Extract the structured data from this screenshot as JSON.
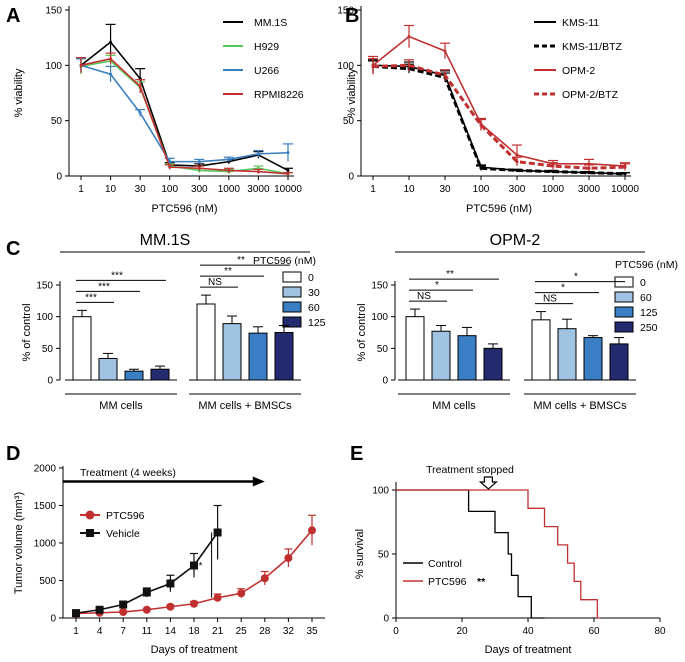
{
  "panels": [
    "A",
    "B",
    "C",
    "D",
    "E"
  ],
  "chart_data": [
    {
      "id": "A",
      "type": "line",
      "xlabel": "PTC596 (nM)",
      "ylabel": "% viability",
      "categories": [
        "1",
        "10",
        "30",
        "100",
        "300",
        "1000",
        "3000",
        "10000"
      ],
      "yticks": [
        "0",
        "50",
        "100",
        "150"
      ],
      "ylim": [
        0,
        150
      ],
      "series": [
        {
          "name": "MM.1S",
          "color": "#000000",
          "dashed": false,
          "values": [
            100,
            121,
            88,
            10,
            9,
            13,
            19,
            5
          ],
          "errors": [
            6,
            16,
            9,
            2,
            2,
            2,
            3,
            2
          ]
        },
        {
          "name": "H929",
          "color": "#5cc85c",
          "dashed": false,
          "values": [
            99,
            104,
            80,
            9,
            5,
            4,
            7,
            2
          ],
          "errors": [
            7,
            5,
            5,
            2,
            2,
            2,
            2,
            1
          ]
        },
        {
          "name": "U266",
          "color": "#3a7fbf",
          "dashed": false,
          "values": [
            100,
            92,
            57,
            13,
            13,
            15,
            20,
            21
          ],
          "errors": [
            6,
            7,
            3,
            3,
            2,
            2,
            3,
            8
          ]
        },
        {
          "name": "RPMI8226",
          "color": "#c03030",
          "dashed": false,
          "values": [
            100,
            106,
            81,
            8,
            7,
            5,
            4,
            2
          ],
          "errors": [
            7,
            5,
            6,
            2,
            2,
            2,
            2,
            1
          ]
        }
      ]
    },
    {
      "id": "B",
      "type": "line",
      "xlabel": "PTC596 (nM)",
      "ylabel": "% viability",
      "categories": [
        "1",
        "10",
        "30",
        "100",
        "300",
        "1000",
        "3000",
        "10000"
      ],
      "yticks": [
        "0",
        "50",
        "100",
        "150"
      ],
      "ylim": [
        0,
        150
      ],
      "series": [
        {
          "name": "KMS-11",
          "color": "#000000",
          "dashed": false,
          "values": [
            100,
            99,
            91,
            8,
            5,
            4,
            3,
            2
          ],
          "errors": [
            5,
            4,
            4,
            2,
            1,
            1,
            1,
            1
          ]
        },
        {
          "name": "KMS-11/BTZ",
          "color": "#000000",
          "dashed": true,
          "values": [
            99,
            97,
            89,
            7,
            5,
            4,
            3,
            2
          ],
          "errors": [
            5,
            4,
            4,
            2,
            1,
            1,
            1,
            1
          ]
        },
        {
          "name": "OPM-2",
          "color": "#c03030",
          "dashed": false,
          "values": [
            100,
            126,
            113,
            47,
            19,
            11,
            11,
            9
          ],
          "errors": [
            8,
            10,
            7,
            5,
            9,
            3,
            4,
            3
          ]
        },
        {
          "name": "OPM-2/BTZ",
          "color": "#c03030",
          "dashed": true,
          "values": [
            99,
            100,
            91,
            46,
            13,
            9,
            7,
            8
          ],
          "errors": [
            7,
            5,
            5,
            5,
            4,
            3,
            3,
            3
          ]
        }
      ]
    },
    {
      "id": "C",
      "type": "bar",
      "ylabel": "% of control",
      "yticks": [
        "0",
        "50",
        "100",
        "150"
      ],
      "ylim": [
        0,
        150
      ],
      "legend_title": "PTC596 (nM)",
      "groups": [
        "MM cells",
        "MM cells + BMSCs"
      ],
      "colors": [
        "#ffffff",
        "#9fc3e0",
        "#3a7fc4",
        "#242a6e"
      ],
      "subcharts": [
        {
          "title": "MM.1S",
          "doses": [
            "0",
            "30",
            "60",
            "125"
          ],
          "values": [
            [
              100,
              34,
              14,
              17
            ],
            [
              120,
              89,
              74,
              75
            ]
          ],
          "errors": [
            [
              10,
              8,
              3,
              5
            ],
            [
              14,
              12,
              10,
              11
            ]
          ],
          "sig": [
            {
              "group": 0,
              "from": 0,
              "to": 1,
              "label": "***",
              "level": 0
            },
            {
              "group": 0,
              "from": 0,
              "to": 2,
              "label": "***",
              "level": 1
            },
            {
              "group": 0,
              "from": 0,
              "to": 3,
              "label": "***",
              "level": 2
            },
            {
              "group": 1,
              "from": 0,
              "to": 1,
              "label": "NS",
              "level": 0
            },
            {
              "group": 1,
              "from": 0,
              "to": 2,
              "label": "**",
              "level": 1
            },
            {
              "group": 1,
              "from": 0,
              "to": 3,
              "label": "**",
              "level": 2
            }
          ]
        },
        {
          "title": "OPM-2",
          "doses": [
            "0",
            "60",
            "125",
            "250"
          ],
          "values": [
            [
              100,
              77,
              70,
              50
            ],
            [
              95,
              81,
              67,
              57
            ]
          ],
          "errors": [
            [
              12,
              9,
              13,
              7
            ],
            [
              13,
              15,
              3,
              10
            ]
          ],
          "sig": [
            {
              "group": 0,
              "from": 0,
              "to": 1,
              "label": "NS",
              "level": 0
            },
            {
              "group": 0,
              "from": 0,
              "to": 2,
              "label": "*",
              "level": 1
            },
            {
              "group": 0,
              "from": 0,
              "to": 3,
              "label": "**",
              "level": 2
            },
            {
              "group": 1,
              "from": 0,
              "to": 1,
              "label": "NS",
              "level": 0
            },
            {
              "group": 1,
              "from": 0,
              "to": 2,
              "label": "*",
              "level": 1
            },
            {
              "group": 1,
              "from": 0,
              "to": 3,
              "label": "*",
              "level": 2
            }
          ]
        }
      ]
    },
    {
      "id": "D",
      "type": "line",
      "xlabel": "Days of treatment",
      "ylabel": "Tumor volume (mm³)",
      "x": [
        1,
        4,
        7,
        11,
        14,
        18,
        21,
        25,
        28,
        32,
        35
      ],
      "xticks": [
        "1",
        "4",
        "7",
        "11",
        "14",
        "18",
        "21",
        "25",
        "28",
        "32",
        "35"
      ],
      "yticks": [
        "0",
        "500",
        "1000",
        "1500",
        "2000"
      ],
      "ylim": [
        0,
        2000
      ],
      "annotation": "Treatment (4 weeks)",
      "sig_label": "*",
      "series": [
        {
          "name": "PTC596",
          "color": "#c03030",
          "marker": "circle",
          "x": [
            1,
            4,
            7,
            11,
            14,
            18,
            21,
            25,
            28,
            32,
            35
          ],
          "values": [
            60,
            70,
            80,
            110,
            150,
            190,
            270,
            330,
            530,
            800,
            1170
          ],
          "errors": [
            15,
            15,
            15,
            20,
            25,
            30,
            50,
            60,
            90,
            120,
            200
          ]
        },
        {
          "name": "Vehicle",
          "color": "#111111",
          "marker": "square",
          "x": [
            1,
            4,
            7,
            11,
            14,
            18,
            21
          ],
          "values": [
            65,
            110,
            180,
            340,
            460,
            700,
            1140
          ],
          "errors": [
            15,
            25,
            40,
            60,
            110,
            160,
            360
          ]
        }
      ]
    },
    {
      "id": "E",
      "type": "line",
      "xlabel": "Days of treatment",
      "ylabel": "% survival",
      "xticks": [
        "0",
        "20",
        "40",
        "60",
        "80"
      ],
      "yticks": [
        "0",
        "50",
        "100"
      ],
      "xlim": [
        0,
        80
      ],
      "ylim": [
        0,
        100
      ],
      "annotation": "Treatment stopped",
      "series": [
        {
          "name": "Control",
          "color": "#000000",
          "steps": [
            [
              0,
              100
            ],
            [
              22,
              100
            ],
            [
              22,
              83.3
            ],
            [
              30,
              83.3
            ],
            [
              30,
              66.7
            ],
            [
              34,
              66.7
            ],
            [
              34,
              50
            ],
            [
              35,
              50
            ],
            [
              35,
              33.3
            ],
            [
              37,
              33.3
            ],
            [
              37,
              16.7
            ],
            [
              41,
              16.7
            ],
            [
              41,
              0
            ],
            [
              45,
              0
            ]
          ]
        },
        {
          "name": "PTC596",
          "color": "#c03030",
          "steps": [
            [
              0,
              100
            ],
            [
              40,
              100
            ],
            [
              40,
              85.7
            ],
            [
              45,
              85.7
            ],
            [
              45,
              71.4
            ],
            [
              49,
              71.4
            ],
            [
              49,
              57.1
            ],
            [
              52,
              57.1
            ],
            [
              52,
              42.9
            ],
            [
              54,
              42.9
            ],
            [
              54,
              28.6
            ],
            [
              56,
              28.6
            ],
            [
              56,
              14.3
            ],
            [
              61,
              14.3
            ],
            [
              61,
              0
            ],
            [
              62,
              0
            ]
          ]
        }
      ],
      "sig_label": "**"
    }
  ]
}
